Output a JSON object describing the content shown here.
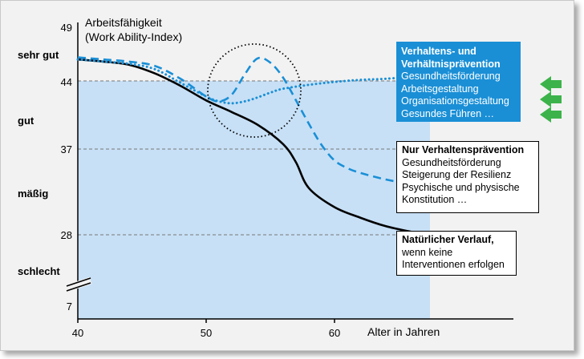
{
  "chart_data": {
    "type": "line",
    "title": "Arbeitsfähigkeit",
    "subtitle": "(Work Ability-Index)",
    "xlabel": "Alter in Jahren",
    "ylabel": "",
    "xlim": [
      40,
      67
    ],
    "xticks": [
      "40",
      "50",
      "60"
    ],
    "yticks": [
      "7",
      "28",
      "37",
      "44",
      "49"
    ],
    "categories": [
      "sehr gut",
      "gut",
      "mäßig",
      "schlecht"
    ],
    "series": [
      {
        "name": "Natürlicher Verlauf",
        "style": "solid",
        "color": "#000000",
        "x": [
          40,
          42,
          44,
          46,
          48,
          50,
          52,
          54,
          56,
          57,
          58,
          60,
          62,
          64,
          66
        ],
        "y": [
          46.0,
          45.8,
          45.5,
          44.7,
          43.5,
          42.0,
          40.8,
          39.5,
          37.5,
          35.6,
          32.9,
          30.9,
          29.8,
          28.9,
          28.3
        ]
      },
      {
        "name": "Nur Verhaltensprävention",
        "style": "dashed",
        "color": "#1a8fd6",
        "x": [
          40,
          42,
          44,
          46,
          48,
          50,
          51,
          52,
          53,
          54,
          55,
          56,
          57,
          58,
          59,
          60,
          61,
          62,
          64,
          66
        ],
        "y": [
          46.2,
          46.0,
          45.8,
          45.4,
          44.2,
          42.4,
          41.9,
          42.6,
          44.6,
          46.1,
          45.7,
          44.3,
          42.0,
          39.6,
          37.4,
          35.8,
          35.0,
          34.5,
          33.8,
          33.3
        ]
      },
      {
        "name": "Verhaltens- und Verhältnisprävention",
        "style": "dotted",
        "color": "#1a8fd6",
        "x": [
          40,
          42,
          44,
          46,
          48,
          50,
          51,
          52,
          53,
          54,
          55,
          56,
          58,
          60,
          62,
          64,
          66
        ],
        "y": [
          46.0,
          45.8,
          45.6,
          45.1,
          43.8,
          42.4,
          41.9,
          41.7,
          41.9,
          42.3,
          42.8,
          43.2,
          43.6,
          43.9,
          44.1,
          44.2,
          44.4
        ]
      }
    ],
    "bands": [
      {
        "from": 7,
        "to": 28,
        "color": "#c7e0f6"
      },
      {
        "from": 28,
        "to": 44,
        "color": "#c7e0f6"
      }
    ],
    "reference_lines": [
      28,
      37,
      44
    ],
    "highlight": "circle-around-crossover"
  },
  "boxes": {
    "blue": {
      "title1": "Verhaltens- und",
      "title2": "Verhältnisprävention",
      "l1": "Gesundheitsförderung",
      "l2": "Arbeitsgestaltung",
      "l3": "Organisationsgestaltung",
      "l4": "Gesundes Führen …"
    },
    "white1": {
      "title": "Nur Verhaltensprävention",
      "l1": "Gesundheitsförderung",
      "l2": "Steigerung der Resilienz",
      "l3": "Psychische und physische",
      "l4": "Konstitution …"
    },
    "white2": {
      "title": "Natürlicher Verlauf,",
      "l1": "wenn keine",
      "l2": "Interventionen erfolgen"
    }
  },
  "colors": {
    "band": "#c7e0f6",
    "accent": "#1a8fd6",
    "arrow": "#3bb34a",
    "background": "#f2f2f2"
  }
}
